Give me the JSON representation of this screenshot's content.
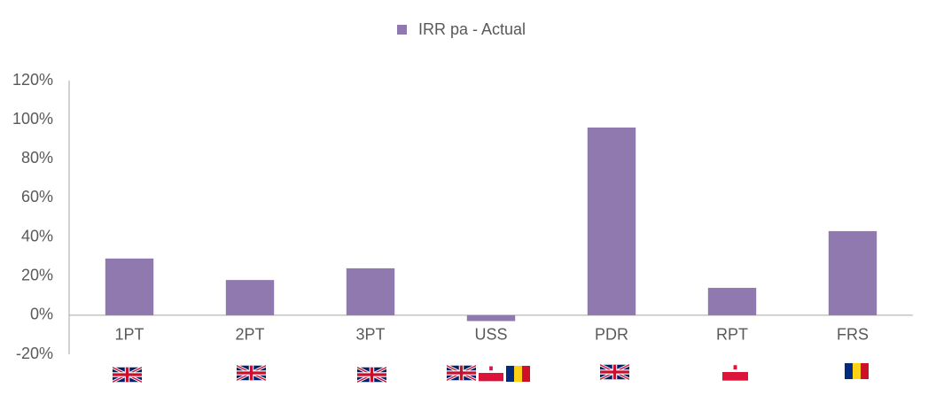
{
  "chart_data": {
    "type": "bar",
    "categories": [
      "1PT",
      "2PT",
      "3PT",
      "USS",
      "PDR",
      "RPT",
      "FRS"
    ],
    "series": [
      {
        "name": "IRR pa - Actual",
        "color": "#8f79ae",
        "values": [
          29,
          18,
          24,
          -3,
          96,
          14,
          43
        ]
      }
    ],
    "ylim": [
      -20,
      120
    ],
    "yticks": [
      {
        "value": -20,
        "label": "-20%"
      },
      {
        "value": 0,
        "label": "0%"
      },
      {
        "value": 20,
        "label": "20%"
      },
      {
        "value": 40,
        "label": "40%"
      },
      {
        "value": 60,
        "label": "60%"
      },
      {
        "value": 80,
        "label": "80%"
      },
      {
        "value": 100,
        "label": "100%"
      },
      {
        "value": 120,
        "label": "120%"
      }
    ],
    "grid": false,
    "legend": "top"
  }
}
